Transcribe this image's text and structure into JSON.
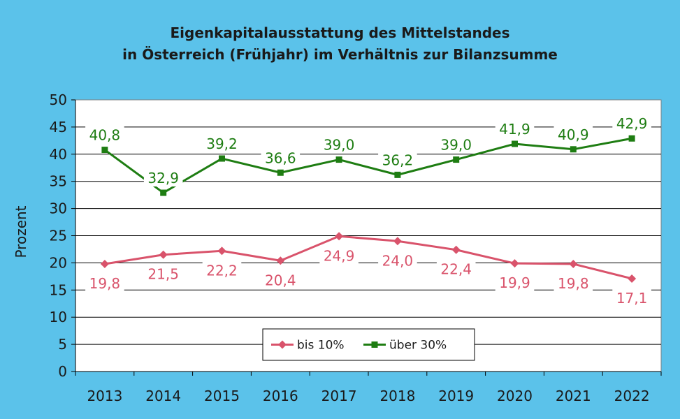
{
  "chart_data": {
    "type": "line",
    "title_line1": "Eigenkapitalausstattung des Mittelstandes",
    "title_line2": "in Österreich (Frühjahr) im Verhältnis zur Bilanzsumme",
    "xlabel": "",
    "ylabel": "Prozent",
    "ylim": [
      0,
      50
    ],
    "yticks": [
      0,
      5,
      10,
      15,
      20,
      25,
      30,
      35,
      40,
      45,
      50
    ],
    "grid": true,
    "legend_position": "bottom-center",
    "categories": [
      "2013",
      "2014",
      "2015",
      "2016",
      "2017",
      "2018",
      "2019",
      "2020",
      "2021",
      "2022"
    ],
    "series": [
      {
        "name": "bis 10%",
        "color": "#d9536b",
        "marker": "diamond",
        "label_position": "below",
        "values": [
          19.8,
          21.5,
          22.2,
          20.4,
          24.9,
          24.0,
          22.4,
          19.9,
          19.8,
          17.1
        ],
        "labels": [
          "19,8",
          "21,5",
          "22,2",
          "20,4",
          "24,9",
          "24,0",
          "22,4",
          "19,9",
          "19,8",
          "17,1"
        ]
      },
      {
        "name": "über 30%",
        "color": "#1e7d12",
        "marker": "square",
        "label_position": "above",
        "values": [
          40.8,
          32.9,
          39.2,
          36.6,
          39.0,
          36.2,
          39.0,
          41.9,
          40.9,
          42.9
        ],
        "labels": [
          "40,8",
          "32,9",
          "39,2",
          "36,6",
          "39,0",
          "36,2",
          "39,0",
          "41,9",
          "40,9",
          "42,9"
        ]
      }
    ]
  },
  "colors": {
    "background": "#5bc2ea",
    "plot_area": "#ffffff",
    "grid": "#000000"
  }
}
